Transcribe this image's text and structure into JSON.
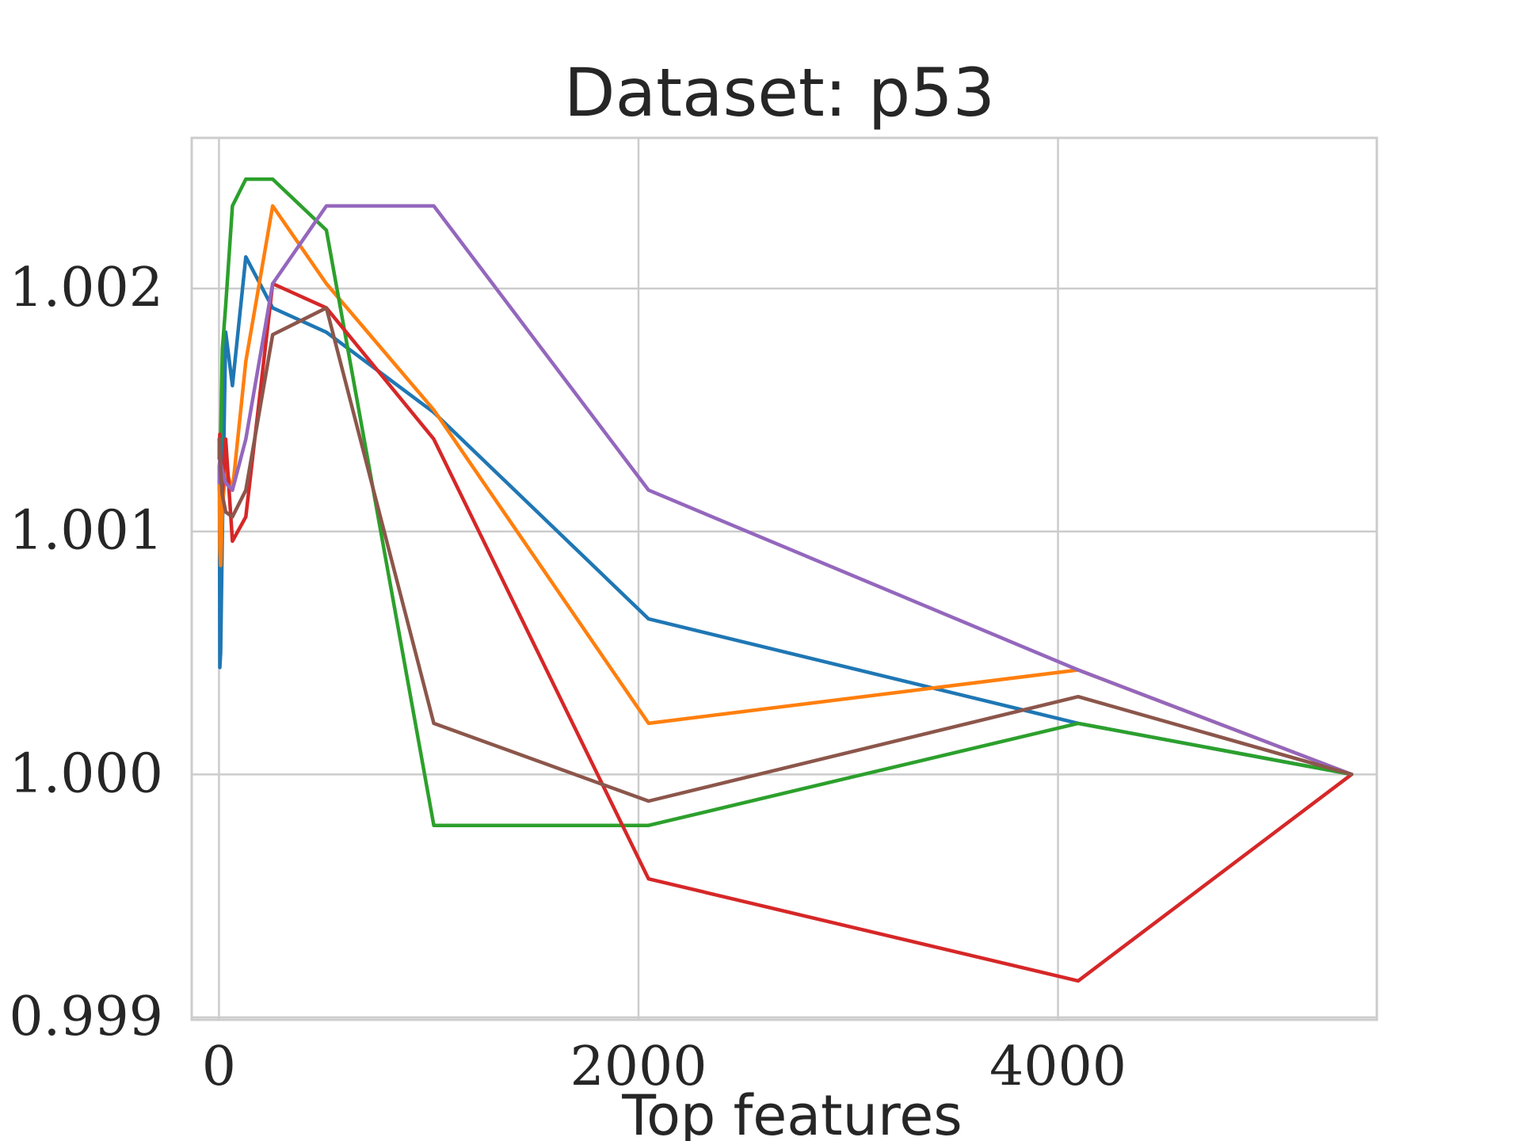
{
  "chart_data": {
    "type": "line",
    "title": "Dataset: p53",
    "xlabel": "Top features",
    "ylabel": "",
    "xlim": [
      -130,
      5520
    ],
    "ylim": [
      0.99899,
      1.00262
    ],
    "xticks": [
      0,
      2000,
      4000
    ],
    "xtick_labels": [
      "0",
      "2000",
      "4000"
    ],
    "yticks": [
      0.999,
      1.0,
      1.001,
      1.002
    ],
    "ytick_labels": [
      "0.999",
      "1.000",
      "1.001",
      "1.002"
    ],
    "grid": true,
    "series": [
      {
        "color": "#1f77b4",
        "x": [
          1,
          2,
          4,
          8,
          16,
          32,
          64,
          128,
          256,
          512,
          1024,
          2048,
          4096,
          5400
        ],
        "y": [
          1.00127,
          1.00122,
          1.00044,
          1.0005,
          1.001,
          1.00182,
          1.0016,
          1.00213,
          1.00192,
          1.00182,
          1.00149,
          1.00064,
          1.00021,
          1.0
        ]
      },
      {
        "color": "#ff7f0e",
        "x": [
          1,
          2,
          4,
          8,
          16,
          32,
          64,
          128,
          256,
          512,
          1024,
          2048,
          4096,
          5400
        ],
        "y": [
          1.00117,
          1.00128,
          1.00093,
          1.00086,
          1.0011,
          1.00126,
          1.00117,
          1.0017,
          1.00234,
          1.00202,
          1.0015,
          1.00021,
          1.00043,
          1.0
        ]
      },
      {
        "color": "#2ca02c",
        "x": [
          1,
          2,
          4,
          8,
          16,
          32,
          64,
          128,
          256,
          512,
          1024,
          2048,
          4096,
          5400
        ],
        "y": [
          1.00132,
          1.00135,
          1.00128,
          1.00138,
          1.00175,
          1.00193,
          1.00234,
          1.00245,
          1.00245,
          1.00224,
          0.99979,
          0.99979,
          1.00021,
          1.0
        ]
      },
      {
        "color": "#d62728",
        "x": [
          1,
          2,
          4,
          8,
          16,
          32,
          64,
          128,
          256,
          512,
          1024,
          2048,
          4096,
          5400
        ],
        "y": [
          1.00138,
          1.00133,
          1.0014,
          1.00128,
          1.00115,
          1.00138,
          1.00096,
          1.00106,
          1.00202,
          1.00192,
          1.00138,
          0.99957,
          0.99915,
          1.0
        ]
      },
      {
        "color": "#9467bd",
        "x": [
          1,
          2,
          4,
          8,
          16,
          32,
          64,
          128,
          256,
          512,
          1024,
          2048,
          4096,
          5400
        ],
        "y": [
          1.0012,
          1.00126,
          1.0013,
          1.00128,
          1.00125,
          1.0012,
          1.00117,
          1.00138,
          1.00202,
          1.00234,
          1.00234,
          1.00117,
          1.00043,
          1.0
        ]
      },
      {
        "color": "#8c564b",
        "x": [
          1,
          2,
          4,
          8,
          16,
          32,
          64,
          128,
          256,
          512,
          1024,
          2048,
          4096,
          5400
        ],
        "y": [
          1.0013,
          1.00135,
          1.00138,
          1.00125,
          1.00115,
          1.00108,
          1.00106,
          1.00117,
          1.00181,
          1.00192,
          1.00021,
          0.99989,
          1.00032,
          1.0
        ]
      }
    ]
  }
}
